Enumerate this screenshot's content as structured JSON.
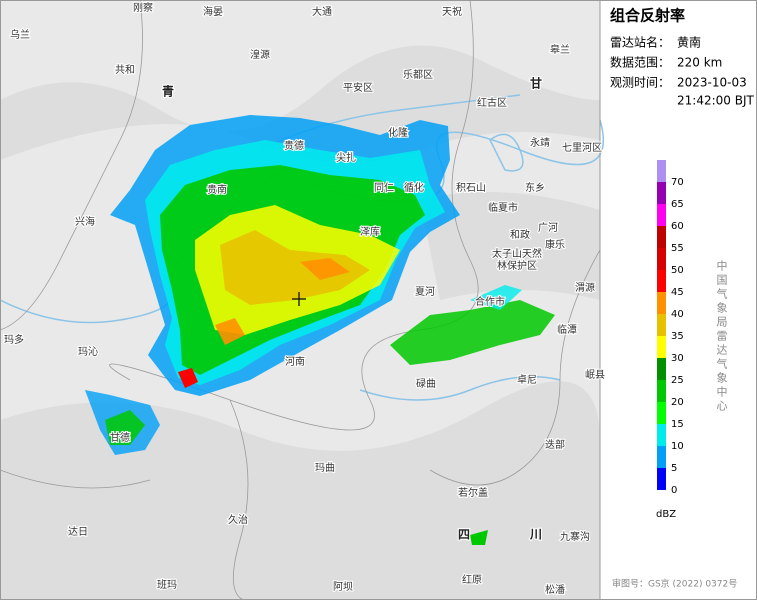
{
  "panel": {
    "title": "组合反射率",
    "station_label": "雷达站名：",
    "station": "黄南",
    "range_label": "数据范围：",
    "range": "220 km",
    "time_label": "观测时间：",
    "date": "2023-10-03",
    "time": "21:42:00 BJT",
    "agency": "中国气象局雷达气象中心",
    "approval": "审图号：GS京 (2022) 0372号"
  },
  "colorbar": {
    "unit": "dBZ",
    "ticks": [
      0,
      5,
      10,
      15,
      20,
      25,
      30,
      35,
      40,
      45,
      50,
      55,
      60,
      65,
      70
    ],
    "colors": [
      "#0000f6",
      "#01a0f6",
      "#00ecec",
      "#01ff00",
      "#00c800",
      "#019000",
      "#ffff00",
      "#e7c000",
      "#ff9000",
      "#ff0000",
      "#d60000",
      "#c00000",
      "#ff00f0",
      "#9600b4",
      "#ad90f0"
    ]
  },
  "places": [
    "刚察",
    "海晏",
    "大通",
    "天祝",
    "乌兰",
    "共和",
    "湟源",
    "平安区",
    "乐都区",
    "皋兰",
    "甘",
    "青",
    "红古区",
    "化隆",
    "贵德",
    "尖扎",
    "永靖",
    "七里河区",
    "贵南",
    "同仁",
    "循化",
    "积石山",
    "临夏市",
    "东乡",
    "和政",
    "广河",
    "康乐",
    "太子山天然",
    "林保护区",
    "兴海",
    "泽库",
    "夏河",
    "合作市",
    "河南",
    "碌曲",
    "玛多",
    "玛沁",
    "甘德",
    "卓尼",
    "临潭",
    "渭源",
    "岷县",
    "迭部",
    "玛曲",
    "若尔盖",
    "久治",
    "达日",
    "四",
    "川",
    "九寨沟",
    "班玛",
    "阿坝",
    "红原",
    "松潘"
  ]
}
